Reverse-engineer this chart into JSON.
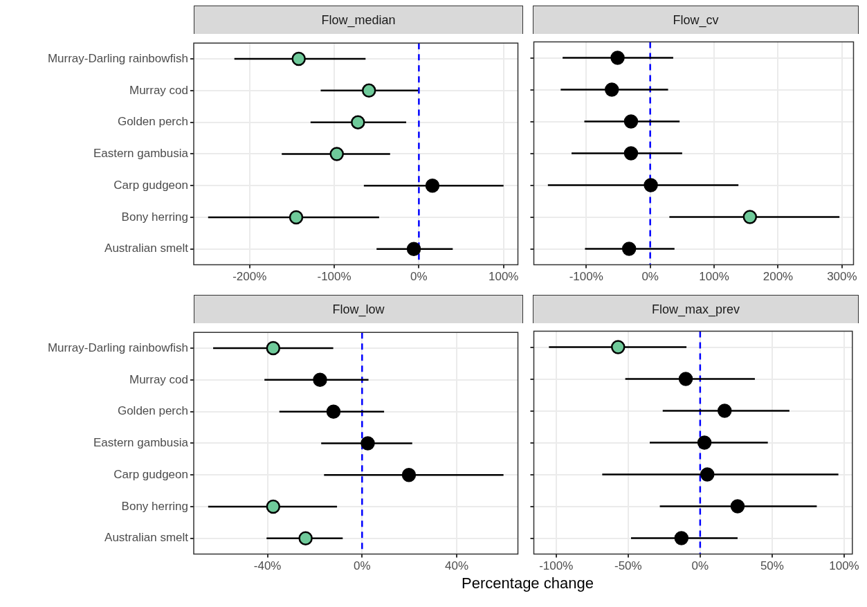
{
  "chart_data": [
    {
      "type": "scatter",
      "title": "Flow_median",
      "orientation": "horizontal",
      "categories": [
        "Murray-Darling rainbowfish",
        "Murray cod",
        "Golden perch",
        "Eastern gambusia",
        "Carp gudgeon",
        "Bony herring",
        "Australian smelt"
      ],
      "values": [
        -142,
        -59,
        -72,
        -97,
        16,
        -145,
        -6
      ],
      "errors": [
        [
          -218,
          -63
        ],
        [
          -116,
          -1
        ],
        [
          -128,
          -15
        ],
        [
          -162,
          -34
        ],
        [
          -65,
          100
        ],
        [
          -249,
          -47
        ],
        [
          -50,
          40
        ]
      ],
      "colors": [
        "#6fca9a",
        "#6fca9a",
        "#6fca9a",
        "#6fca9a",
        "#000000",
        "#6fca9a",
        "#000000"
      ],
      "xlim": [
        -266,
        117
      ],
      "xticks": [
        {
          "value": -200,
          "label": "-200%"
        },
        {
          "value": -100,
          "label": "-100%"
        },
        {
          "value": 0,
          "label": "0%"
        },
        {
          "value": 100,
          "label": "100%"
        }
      ],
      "ref_lines": [
        {
          "axis": "x",
          "value": 0,
          "color": "#0000ff",
          "line_style": "dashed"
        }
      ],
      "grid": true,
      "marker": "circle"
    },
    {
      "type": "scatter",
      "title": "Flow_cv",
      "orientation": "horizontal",
      "categories": [
        null,
        null,
        null,
        null,
        null,
        null,
        null
      ],
      "values": [
        -51,
        -60,
        -30,
        -30,
        1,
        156,
        -33
      ],
      "errors": [
        [
          -137,
          36
        ],
        [
          -140,
          28
        ],
        [
          -103,
          46
        ],
        [
          -123,
          50
        ],
        [
          -160,
          138
        ],
        [
          30,
          296
        ],
        [
          -102,
          38
        ]
      ],
      "colors": [
        "#000000",
        "#000000",
        "#000000",
        "#000000",
        "#000000",
        "#6fca9a",
        "#000000"
      ],
      "xlim": [
        -182,
        318
      ],
      "xticks": [
        {
          "value": -100,
          "label": "-100%"
        },
        {
          "value": 0,
          "label": "0%"
        },
        {
          "value": 100,
          "label": "100%"
        },
        {
          "value": 200,
          "label": "200%"
        },
        {
          "value": 300,
          "label": "300%"
        }
      ],
      "ref_lines": [
        {
          "axis": "x",
          "value": 0,
          "color": "#0000ff",
          "line_style": "dashed"
        }
      ],
      "grid": true,
      "marker": "circle",
      "tick_labels": "x"
    },
    {
      "type": "scatter",
      "title": "Flow_low",
      "orientation": "horizontal",
      "xlabel": "Percentage change",
      "categories": [
        "Murray-Darling rainbowfish",
        "Murray cod",
        "Golden perch",
        "Eastern gambusia",
        "Carp gudgeon",
        "Bony herring",
        "Australian smelt"
      ],
      "values": [
        -37.6,
        -17.8,
        -12.1,
        2.4,
        19.8,
        -37.6,
        -23.9
      ],
      "errors": [
        [
          -63,
          -12.2
        ],
        [
          -41.3,
          2.7
        ],
        [
          -35,
          9.3
        ],
        [
          -17.3,
          21.2
        ],
        [
          -16.1,
          59.8
        ],
        [
          -65.1,
          -10.6
        ],
        [
          -40.4,
          -8.2
        ]
      ],
      "colors": [
        "#6fca9a",
        "#000000",
        "#000000",
        "#000000",
        "#000000",
        "#6fca9a",
        "#6fca9a"
      ],
      "xlim": [
        -71.2,
        65.9
      ],
      "xticks": [
        {
          "value": -40,
          "label": "-40%"
        },
        {
          "value": 0,
          "label": "0%"
        },
        {
          "value": 40,
          "label": "40%"
        }
      ],
      "ref_lines": [
        {
          "axis": "x",
          "value": 0,
          "color": "#0000ff",
          "line_style": "dashed"
        }
      ],
      "grid": true,
      "marker": "circle"
    },
    {
      "type": "scatter",
      "title": "Flow_max_prev",
      "orientation": "horizontal",
      "categories": [
        null,
        null,
        null,
        null,
        null,
        null,
        null
      ],
      "values": [
        -57,
        -10,
        17,
        3,
        5,
        26,
        -13
      ],
      "errors": [
        [
          -105,
          -9.5
        ],
        [
          -52,
          38
        ],
        [
          -26,
          62
        ],
        [
          -35,
          47
        ],
        [
          -68,
          96
        ],
        [
          -28,
          81
        ],
        [
          -48,
          26
        ]
      ],
      "colors": [
        "#6fca9a",
        "#000000",
        "#000000",
        "#000000",
        "#000000",
        "#000000",
        "#000000"
      ],
      "xlim": [
        -115.5,
        105.7
      ],
      "xticks": [
        {
          "value": -100,
          "label": "-100%"
        },
        {
          "value": -50,
          "label": "-50%"
        },
        {
          "value": 0,
          "label": "0%"
        },
        {
          "value": 50,
          "label": "50%"
        },
        {
          "value": 100,
          "label": "100%"
        }
      ],
      "ref_lines": [
        {
          "axis": "x",
          "value": 0,
          "color": "#0000ff",
          "line_style": "dashed"
        }
      ],
      "grid": true,
      "marker": "circle",
      "tick_labels": "x"
    }
  ]
}
